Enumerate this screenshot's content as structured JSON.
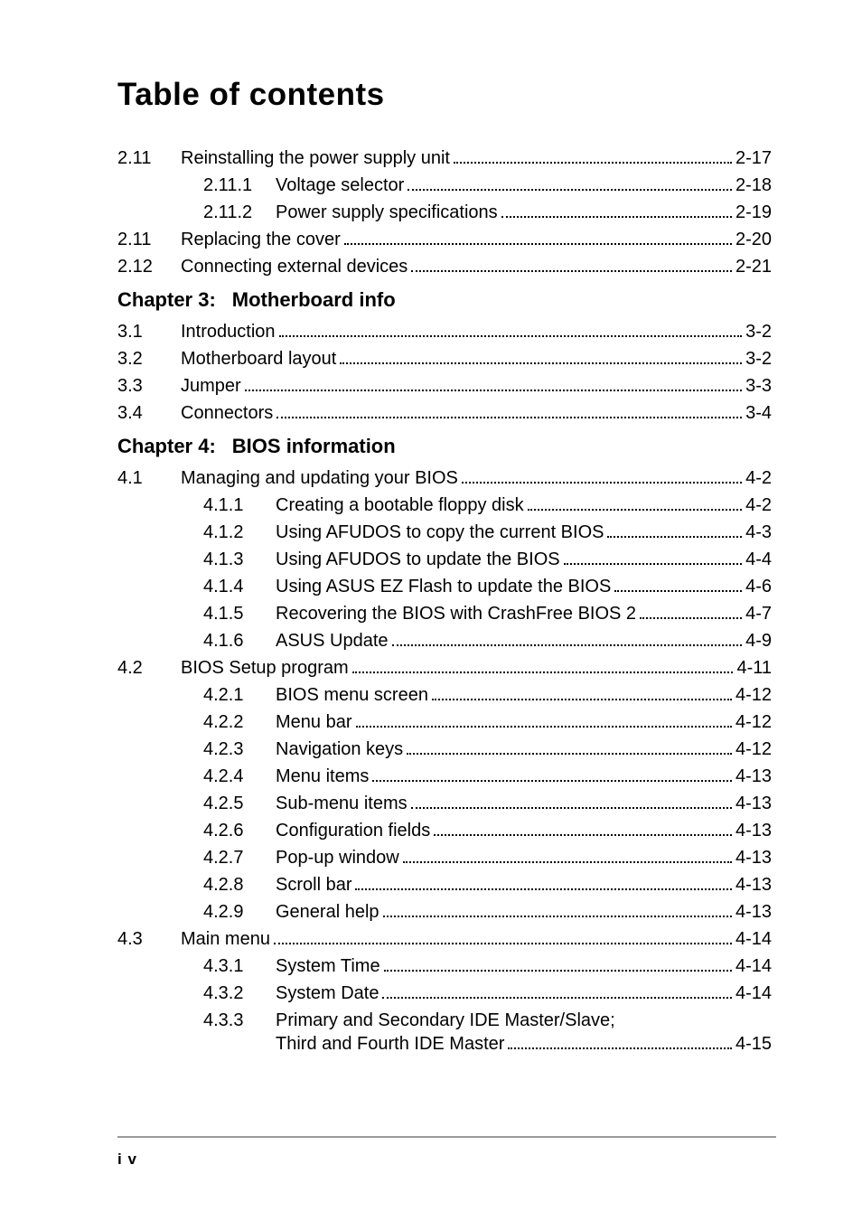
{
  "title": "Table of contents",
  "chapters": [
    {
      "num": "Chapter 3:",
      "title": "Motherboard info"
    },
    {
      "num": "Chapter 4:",
      "title": "BIOS information"
    }
  ],
  "rows": [
    {
      "indent": 0,
      "num": "2.11",
      "label": "Reinstalling the power supply unit",
      "page": "2-17"
    },
    {
      "indent": 1,
      "num": "2.11.1",
      "label": "Voltage selector",
      "page": "2-18"
    },
    {
      "indent": 1,
      "num": "2.11.2",
      "label": "Power supply specifications",
      "page": "2-19"
    },
    {
      "indent": 0,
      "num": "2.11",
      "label": "Replacing the cover",
      "page": "2-20"
    },
    {
      "indent": 0,
      "num": "2.12",
      "label": "Connecting external devices",
      "page": "2-21"
    },
    {
      "chapter": 0
    },
    {
      "indent": 0,
      "num": "3.1",
      "label": "Introduction",
      "page": "3-2"
    },
    {
      "indent": 0,
      "num": "3.2",
      "label": "Motherboard layout",
      "page": "3-2"
    },
    {
      "indent": 0,
      "num": "3.3",
      "label": "Jumper",
      "page": "3-3"
    },
    {
      "indent": 0,
      "num": "3.4",
      "label": "Connectors",
      "page": "3-4"
    },
    {
      "chapter": 1
    },
    {
      "indent": 0,
      "num": "4.1",
      "label": "Managing and updating your BIOS",
      "page": "4-2"
    },
    {
      "indent": 1,
      "num": "4.1.1",
      "label": "Creating a bootable floppy disk",
      "page": "4-2"
    },
    {
      "indent": 1,
      "num": "4.1.2",
      "label": "Using AFUDOS to copy the current BIOS",
      "page": "4-3"
    },
    {
      "indent": 1,
      "num": "4.1.3",
      "label": "Using AFUDOS to update the BIOS",
      "page": "4-4"
    },
    {
      "indent": 1,
      "num": "4.1.4",
      "label": "Using ASUS EZ Flash to update the BIOS",
      "page": "4-6"
    },
    {
      "indent": 1,
      "num": "4.1.5",
      "label": "Recovering the BIOS with CrashFree BIOS 2",
      "page": "4-7"
    },
    {
      "indent": 1,
      "num": "4.1.6",
      "label": "ASUS Update",
      "page": "4-9"
    },
    {
      "indent": 0,
      "num": "4.2",
      "label": "BIOS Setup program",
      "page": "4-11"
    },
    {
      "indent": 1,
      "num": "4.2.1",
      "label": "BIOS menu screen",
      "page": "4-12"
    },
    {
      "indent": 1,
      "num": "4.2.2",
      "label": "Menu bar",
      "page": "4-12"
    },
    {
      "indent": 1,
      "num": "4.2.3",
      "label": "Navigation keys",
      "page": "4-12"
    },
    {
      "indent": 1,
      "num": "4.2.4",
      "label": "Menu items",
      "page": "4-13"
    },
    {
      "indent": 1,
      "num": "4.2.5",
      "label": "Sub-menu items",
      "page": "4-13"
    },
    {
      "indent": 1,
      "num": "4.2.6",
      "label": "Configuration fields",
      "page": "4-13"
    },
    {
      "indent": 1,
      "num": "4.2.7",
      "label": "Pop-up window",
      "page": "4-13"
    },
    {
      "indent": 1,
      "num": "4.2.8",
      "label": "Scroll bar",
      "page": "4-13"
    },
    {
      "indent": 1,
      "num": "4.2.9",
      "label": "General help",
      "page": "4-13"
    },
    {
      "indent": 0,
      "num": "4.3",
      "label": "Main menu",
      "page": "4-14"
    },
    {
      "indent": 1,
      "num": "4.3.1",
      "label": "System Time",
      "page": "4-14"
    },
    {
      "indent": 1,
      "num": "4.3.2",
      "label": "System Date",
      "page": "4-14"
    },
    {
      "indent": 1,
      "num": "4.3.3",
      "label": "Primary and Secondary IDE Master/Slave;",
      "label2": "Third and Fourth IDE Master",
      "page": "4-15"
    }
  ],
  "footer_page": "i v"
}
